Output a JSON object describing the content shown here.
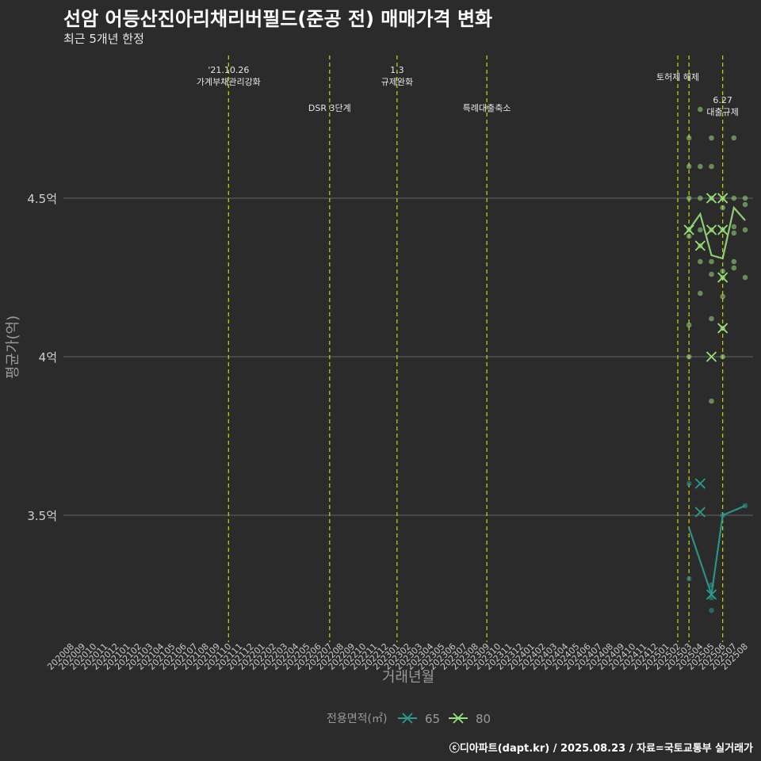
{
  "chart_data": {
    "type": "scatter+line",
    "title": "선암 어등산진아리채리버필드(준공 전) 매매가격 변화",
    "subtitle": "최근 5개년 한정",
    "xlabel": "거래년월",
    "ylabel": "평균가(억)",
    "caption": "ⓒ디아파트(dapt.kr) / 2025.08.23 / 자료=국토교통부 실거래가",
    "legend_title": "전용면적(㎡)",
    "categories": [
      "202008",
      "202009",
      "202010",
      "202011",
      "202012",
      "202101",
      "202102",
      "202103",
      "202104",
      "202105",
      "202106",
      "202107",
      "202108",
      "202109",
      "202110",
      "202111",
      "202112",
      "202201",
      "202202",
      "202203",
      "202204",
      "202205",
      "202206",
      "202207",
      "202208",
      "202209",
      "202210",
      "202211",
      "202212",
      "202301",
      "202302",
      "202303",
      "202304",
      "202305",
      "202306",
      "202307",
      "202308",
      "202309",
      "202310",
      "202311",
      "202312",
      "202401",
      "202402",
      "202403",
      "202404",
      "202405",
      "202406",
      "202407",
      "202408",
      "202409",
      "202410",
      "202411",
      "202412",
      "202501",
      "202502",
      "202503",
      "202504",
      "202505",
      "202506",
      "202507",
      "202508"
    ],
    "yticks": [
      {
        "value": 3.5,
        "label": "3.5억"
      },
      {
        "value": 4.0,
        "label": "4억"
      },
      {
        "value": 4.5,
        "label": "4.5억"
      }
    ],
    "ylim": [
      3.1,
      4.95
    ],
    "events": [
      {
        "month": "202110",
        "label1": "'21.10.26",
        "label2": "가계부채관리강화",
        "row": 0
      },
      {
        "month": "202207",
        "label1": "DSR 3단계",
        "label2": "",
        "row": 1
      },
      {
        "month": "202301",
        "label1": "1.3",
        "label2": "규제완화",
        "row": 0
      },
      {
        "month": "202309",
        "label1": "특례대출축소",
        "label2": "",
        "row": 1
      },
      {
        "month": "202502",
        "label1": "토허제 해제",
        "label2": "",
        "row": 2
      },
      {
        "month": "202503",
        "label1": "",
        "label2": "",
        "row": 2
      },
      {
        "month": "202506",
        "label1": "6.27",
        "label2": "대출규제",
        "row": 3
      }
    ],
    "series": [
      {
        "name": "65",
        "color": "#2a9d8f",
        "line": [
          [
            "202503",
            3.46
          ],
          [
            "202505",
            3.25
          ],
          [
            "202506",
            3.5
          ],
          [
            "202508",
            3.53
          ]
        ],
        "means": [
          [
            "202504",
            3.6
          ],
          [
            "202504",
            3.51
          ],
          [
            "202505",
            3.25
          ]
        ],
        "points": [
          [
            "202503",
            3.6
          ],
          [
            "202503",
            3.3
          ],
          [
            "202505",
            3.28
          ],
          [
            "202505",
            3.24
          ],
          [
            "202505",
            3.2
          ],
          [
            "202506",
            3.5
          ],
          [
            "202508",
            3.53
          ]
        ]
      },
      {
        "name": "80",
        "color": "#98e07a",
        "line": [
          [
            "202503",
            4.4
          ],
          [
            "202504",
            4.45
          ],
          [
            "202505",
            4.32
          ],
          [
            "202506",
            4.31
          ],
          [
            "202507",
            4.47
          ],
          [
            "202508",
            4.43
          ]
        ],
        "means": [
          [
            "202503",
            4.4
          ],
          [
            "202504",
            4.35
          ],
          [
            "202505",
            4.5
          ],
          [
            "202505",
            4.4
          ],
          [
            "202505",
            4.0
          ],
          [
            "202506",
            4.5
          ],
          [
            "202506",
            4.4
          ],
          [
            "202506",
            4.25
          ],
          [
            "202506",
            4.09
          ]
        ],
        "points": [
          [
            "202503",
            4.69
          ],
          [
            "202503",
            4.6
          ],
          [
            "202503",
            4.5
          ],
          [
            "202503",
            4.4
          ],
          [
            "202503",
            4.38
          ],
          [
            "202503",
            4.1
          ],
          [
            "202503",
            4.0
          ],
          [
            "202504",
            4.78
          ],
          [
            "202504",
            4.6
          ],
          [
            "202504",
            4.5
          ],
          [
            "202504",
            4.4
          ],
          [
            "202504",
            4.35
          ],
          [
            "202504",
            4.3
          ],
          [
            "202504",
            4.2
          ],
          [
            "202505",
            4.69
          ],
          [
            "202505",
            4.6
          ],
          [
            "202505",
            4.5
          ],
          [
            "202505",
            4.4
          ],
          [
            "202505",
            4.3
          ],
          [
            "202505",
            4.26
          ],
          [
            "202505",
            4.12
          ],
          [
            "202505",
            3.86
          ],
          [
            "202506",
            4.5
          ],
          [
            "202506",
            4.47
          ],
          [
            "202506",
            4.4
          ],
          [
            "202506",
            4.27
          ],
          [
            "202506",
            4.25
          ],
          [
            "202506",
            4.19
          ],
          [
            "202506",
            4.09
          ],
          [
            "202506",
            4.0
          ],
          [
            "202507",
            4.69
          ],
          [
            "202507",
            4.5
          ],
          [
            "202507",
            4.41
          ],
          [
            "202507",
            4.39
          ],
          [
            "202507",
            4.3
          ],
          [
            "202507",
            4.28
          ],
          [
            "202508",
            4.5
          ],
          [
            "202508",
            4.48
          ],
          [
            "202508",
            4.4
          ],
          [
            "202508",
            4.25
          ]
        ]
      }
    ]
  }
}
